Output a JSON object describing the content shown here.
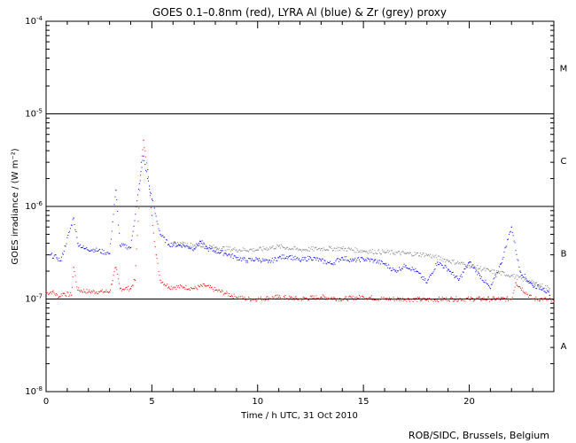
{
  "chart_data": {
    "type": "scatter",
    "title": "GOES 0.1–0.8nm (red), LYRA Al (blue) & Zr (grey) proxy",
    "xlabel": "Time / h UTC, 31 Oct 2010",
    "ylabel": "GOES irradiance / (W m⁻²)",
    "xlim": [
      0,
      24
    ],
    "ylim": [
      1e-08,
      0.0001
    ],
    "yscale": "log",
    "x_ticks": [
      {
        "value": 0,
        "label": "0"
      },
      {
        "value": 5,
        "label": "5"
      },
      {
        "value": 10,
        "label": "10"
      },
      {
        "value": 15,
        "label": "15"
      },
      {
        "value": 20,
        "label": "20"
      }
    ],
    "y_ticks": [
      {
        "value": 1e-08,
        "base": "10",
        "exp": "-8"
      },
      {
        "value": 1e-07,
        "base": "10",
        "exp": "-7"
      },
      {
        "value": 1e-06,
        "base": "10",
        "exp": "-6"
      },
      {
        "value": 1e-05,
        "base": "10",
        "exp": "-5"
      },
      {
        "value": 0.0001,
        "base": "10",
        "exp": "-4"
      }
    ],
    "flare_class_lines": [
      1e-07,
      1e-06,
      1e-05
    ],
    "flare_classes": [
      {
        "label": "M",
        "y": 3.16e-05
      },
      {
        "label": "C",
        "y": 3.16e-06
      },
      {
        "label": "B",
        "y": 3.16e-07
      },
      {
        "label": "A",
        "y": 3.16e-08
      }
    ],
    "series": [
      {
        "name": "GOES 0.1–0.8nm",
        "color": "#ff0000",
        "points": [
          [
            0.0,
            1.15e-07
          ],
          [
            0.3,
            1.2e-07
          ],
          [
            0.6,
            1.05e-07
          ],
          [
            0.8,
            1.15e-07
          ],
          [
            1.2,
            1.1e-07
          ],
          [
            1.3,
            2.2e-07
          ],
          [
            1.5,
            1.25e-07
          ],
          [
            2.0,
            1.2e-07
          ],
          [
            2.5,
            1.2e-07
          ],
          [
            3.0,
            1.2e-07
          ],
          [
            3.3,
            2.2e-07
          ],
          [
            3.5,
            1.3e-07
          ],
          [
            4.0,
            1.3e-07
          ],
          [
            4.2,
            1.6e-07
          ],
          [
            4.5,
            3e-06
          ],
          [
            4.6,
            5.2e-06
          ],
          [
            4.8,
            2.5e-06
          ],
          [
            5.0,
            8e-07
          ],
          [
            5.2,
            3e-07
          ],
          [
            5.4,
            1.6e-07
          ],
          [
            5.8,
            1.35e-07
          ],
          [
            6.5,
            1.35e-07
          ],
          [
            7.0,
            1.3e-07
          ],
          [
            7.5,
            1.4e-07
          ],
          [
            8.0,
            1.25e-07
          ],
          [
            8.5,
            1.15e-07
          ],
          [
            9.0,
            1.05e-07
          ],
          [
            9.5,
            1e-07
          ],
          [
            10,
            1e-07
          ],
          [
            11,
            1.05e-07
          ],
          [
            12,
            1e-07
          ],
          [
            13,
            1.05e-07
          ],
          [
            14,
            1e-07
          ],
          [
            15,
            1.05e-07
          ],
          [
            16,
            1e-07
          ],
          [
            17,
            1e-07
          ],
          [
            18,
            9.8e-08
          ],
          [
            19,
            1e-07
          ],
          [
            20,
            1e-07
          ],
          [
            21,
            1e-07
          ],
          [
            22,
            1e-07
          ],
          [
            22.2,
            1.5e-07
          ],
          [
            23,
            1e-07
          ],
          [
            23.5,
            1e-07
          ],
          [
            24,
            9.5e-08
          ]
        ]
      },
      {
        "name": "LYRA Al proxy",
        "color": "#0000ff",
        "points": [
          [
            0.2,
            3e-07
          ],
          [
            0.5,
            2.8e-07
          ],
          [
            0.7,
            2.6e-07
          ],
          [
            1.3,
            7.5e-07
          ],
          [
            1.5,
            4e-07
          ],
          [
            1.8,
            3.5e-07
          ],
          [
            2.3,
            3.4e-07
          ],
          [
            3.0,
            3.1e-07
          ],
          [
            3.3,
            1.5e-06
          ],
          [
            3.5,
            3.8e-07
          ],
          [
            4.0,
            3.6e-07
          ],
          [
            4.6,
            3.5e-06
          ],
          [
            5.0,
            1.2e-06
          ],
          [
            5.4,
            5e-07
          ],
          [
            5.8,
            3.9e-07
          ],
          [
            6.5,
            3.8e-07
          ],
          [
            7.0,
            3.5e-07
          ],
          [
            7.3,
            4.2e-07
          ],
          [
            7.6,
            3.5e-07
          ],
          [
            8.0,
            3.3e-07
          ],
          [
            8.5,
            3.1e-07
          ],
          [
            9.0,
            2.8e-07
          ],
          [
            9.5,
            2.6e-07
          ],
          [
            10.0,
            2.7e-07
          ],
          [
            10.5,
            2.5e-07
          ],
          [
            11.0,
            2.8e-07
          ],
          [
            11.5,
            2.9e-07
          ],
          [
            12.0,
            2.6e-07
          ],
          [
            12.5,
            2.8e-07
          ],
          [
            13.0,
            2.6e-07
          ],
          [
            13.5,
            2.4e-07
          ],
          [
            14.0,
            2.8e-07
          ],
          [
            14.5,
            2.6e-07
          ],
          [
            15.0,
            2.7e-07
          ],
          [
            15.5,
            2.6e-07
          ],
          [
            16.0,
            2.4e-07
          ],
          [
            16.5,
            2e-07
          ],
          [
            17.0,
            2.3e-07
          ],
          [
            17.5,
            2e-07
          ],
          [
            18.0,
            1.5e-07
          ],
          [
            18.5,
            2.5e-07
          ],
          [
            19.0,
            2.1e-07
          ],
          [
            19.5,
            1.6e-07
          ],
          [
            20.0,
            2.5e-07
          ],
          [
            20.5,
            1.8e-07
          ],
          [
            21.0,
            1.3e-07
          ],
          [
            21.5,
            2.4e-07
          ],
          [
            22.0,
            6e-07
          ],
          [
            22.4,
            2e-07
          ],
          [
            23.0,
            1.4e-07
          ],
          [
            23.5,
            1.3e-07
          ],
          [
            23.8,
            1.1e-07
          ]
        ]
      },
      {
        "name": "LYRA Zr proxy",
        "color": "#808080",
        "points": [
          [
            6.0,
            4e-07
          ],
          [
            7.0,
            3.8e-07
          ],
          [
            8.0,
            3.6e-07
          ],
          [
            9.0,
            3.4e-07
          ],
          [
            10.0,
            3.4e-07
          ],
          [
            11.0,
            3.7e-07
          ],
          [
            12.0,
            3.4e-07
          ],
          [
            13.0,
            3.5e-07
          ],
          [
            14.0,
            3.5e-07
          ],
          [
            15.0,
            3.3e-07
          ],
          [
            16.0,
            3.2e-07
          ],
          [
            17.0,
            3.1e-07
          ],
          [
            18.0,
            3e-07
          ],
          [
            19.0,
            2.6e-07
          ],
          [
            20.0,
            2.3e-07
          ],
          [
            21.0,
            2e-07
          ],
          [
            22.0,
            1.8e-07
          ],
          [
            23.0,
            1.5e-07
          ],
          [
            23.8,
            1.3e-07
          ]
        ]
      }
    ]
  },
  "footer": {
    "credit": "ROB/SIDC, Brussels, Belgium"
  }
}
